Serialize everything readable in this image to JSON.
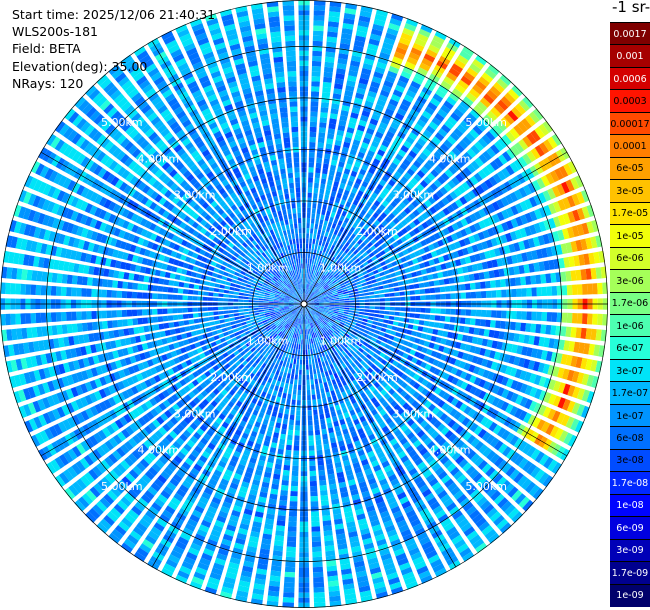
{
  "header": {
    "start_time": "Start time: 2025/12/06 21:40:31",
    "instrument": "WLS200s-181",
    "field": "Field: BETA",
    "elevation": "Elevation(deg): 35.00",
    "nrays": "NRays: 120"
  },
  "colorbar": {
    "unit_label": "-1 sr-",
    "ticks": [
      "0.0017",
      "0.001",
      "0.0006",
      "0.0003",
      "0.00017",
      "0.0001",
      "6e-05",
      "3e-05",
      "1.7e-05",
      "1e-05",
      "6e-06",
      "3e-06",
      "1.7e-06",
      "1e-06",
      "6e-07",
      "3e-07",
      "1.7e-07",
      "1e-07",
      "6e-08",
      "3e-08",
      "1.7e-08",
      "1e-08",
      "6e-09",
      "3e-09",
      "1.7e-09",
      "1e-09"
    ],
    "colors": [
      "#7f0000",
      "#a60000",
      "#d40000",
      "#ff1400",
      "#ff4a00",
      "#ff7f00",
      "#ffa100",
      "#ffc200",
      "#ffe300",
      "#f2ff0a",
      "#d3ff2a",
      "#a5ff59",
      "#79ff85",
      "#4dffb1",
      "#26ffd9",
      "#00e4f8",
      "#00b8ff",
      "#0094ff",
      "#0070ff",
      "#004cff",
      "#0028ff",
      "#0004ff",
      "#0000e0",
      "#0000b7",
      "#00008e",
      "#00006b"
    ]
  },
  "chart_data": {
    "type": "heatmap",
    "projection": "ppi-polar",
    "n_rays": 120,
    "ray_angle_step_deg": 3,
    "range_rings_km": [
      1,
      2,
      3,
      4,
      5
    ],
    "ring_label_texts": [
      "1.00km",
      "2.00km",
      "3.00km",
      "4.00km",
      "5.00km"
    ],
    "max_range_km": 5.9,
    "spokes_deg": [
      0,
      30,
      60,
      90,
      120,
      150,
      180,
      210,
      240,
      270,
      300,
      330
    ],
    "background_value_range": [
      "1e-08",
      "1e-07"
    ],
    "features": [
      {
        "name": "high-backscatter-arc",
        "azimuth_range_deg": [
          20,
          120
        ],
        "range_km": [
          4.9,
          5.8
        ],
        "peak_value": "0.0001"
      }
    ]
  }
}
